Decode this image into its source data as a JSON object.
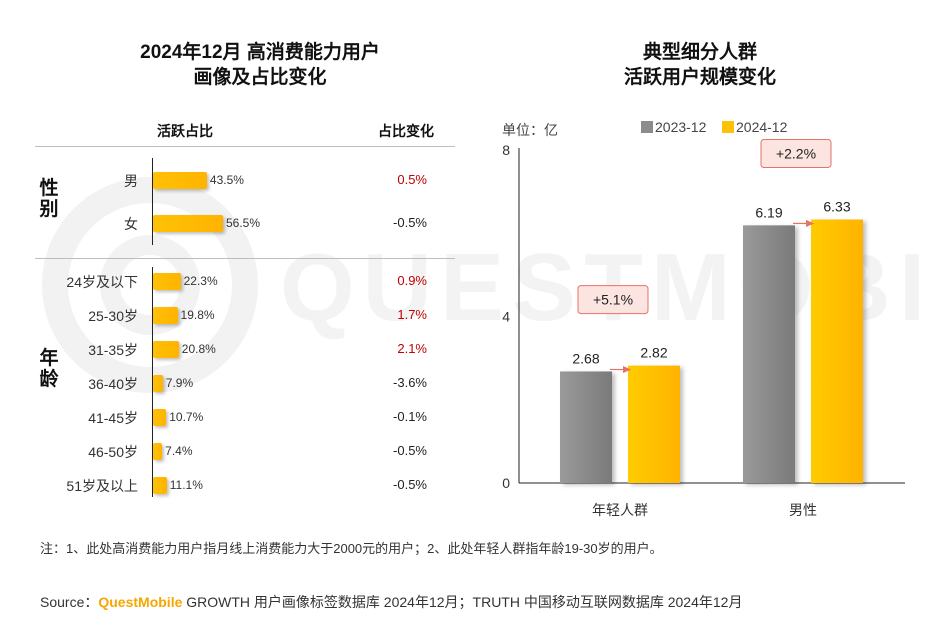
{
  "left_panel": {
    "title_line1": "2024年12月 高消费能力用户",
    "title_line2": "画像及占比变化",
    "col_share": "活跃占比",
    "col_change": "占比变化",
    "gender_label": "性别",
    "age_label": "年龄",
    "gender_rows": [
      {
        "category": "男",
        "value": 43.5,
        "label": "43.5%",
        "change": "0.5%",
        "positive": true
      },
      {
        "category": "女",
        "value": 56.5,
        "label": "56.5%",
        "change": "-0.5%",
        "positive": false
      }
    ],
    "age_rows": [
      {
        "category": "24岁及以下",
        "value": 22.3,
        "label": "22.3%",
        "change": "0.9%",
        "positive": true
      },
      {
        "category": "25-30岁",
        "value": 19.8,
        "label": "19.8%",
        "change": "1.7%",
        "positive": true
      },
      {
        "category": "31-35岁",
        "value": 20.8,
        "label": "20.8%",
        "change": "2.1%",
        "positive": true
      },
      {
        "category": "36-40岁",
        "value": 7.9,
        "label": "7.9%",
        "change": "-3.6%",
        "positive": false
      },
      {
        "category": "41-45岁",
        "value": 10.7,
        "label": "10.7%",
        "change": "-0.1%",
        "positive": false
      },
      {
        "category": "46-50岁",
        "value": 7.4,
        "label": "7.4%",
        "change": "-0.5%",
        "positive": false
      },
      {
        "category": "51岁及以上",
        "value": 11.1,
        "label": "11.1%",
        "change": "-0.5%",
        "positive": false
      }
    ]
  },
  "right_panel": {
    "title_line1": "典型细分人群",
    "title_line2": "活跃用户规模变化",
    "unit": "单位：亿"
  },
  "chart_data": {
    "type": "bar",
    "title": "典型细分人群 活跃用户规模变化",
    "categories": [
      "年轻人群",
      "男性"
    ],
    "series": [
      {
        "name": "2023-12",
        "values": [
          2.68,
          6.19
        ],
        "labels": [
          "2.68",
          "6.19"
        ]
      },
      {
        "name": "2024-12",
        "values": [
          2.82,
          6.33
        ],
        "labels": [
          "2.82",
          "6.33"
        ]
      }
    ],
    "growth": [
      "+5.1%",
      "+2.2%"
    ],
    "ylim": [
      0,
      8
    ],
    "yticks": [
      0,
      4,
      8
    ],
    "ylabel": "单位：亿",
    "xlabel": "",
    "grid": false,
    "legend": "top"
  },
  "colors": {
    "bar_2023": "#8c8c8c",
    "bar_2024": "#ffc107",
    "positive_change": "#c00000",
    "negative_change": "#222222",
    "growth_box_fill": "#fce4e0",
    "growth_box_border": "#e57368",
    "brand": "#f6a700"
  },
  "footer": {
    "note": "注：1、此处高消费能力用户指月线上消费能力大于2000元的用户；2、此处年轻人群指年龄19-30岁的用户。",
    "source_prefix": "Source：",
    "source_brand": "QuestMobile",
    "source_rest": " GROWTH 用户画像标签数据库 2024年12月；TRUTH 中国移动互联网数据库 2024年12月"
  },
  "watermark": "QUESTMOBILE"
}
